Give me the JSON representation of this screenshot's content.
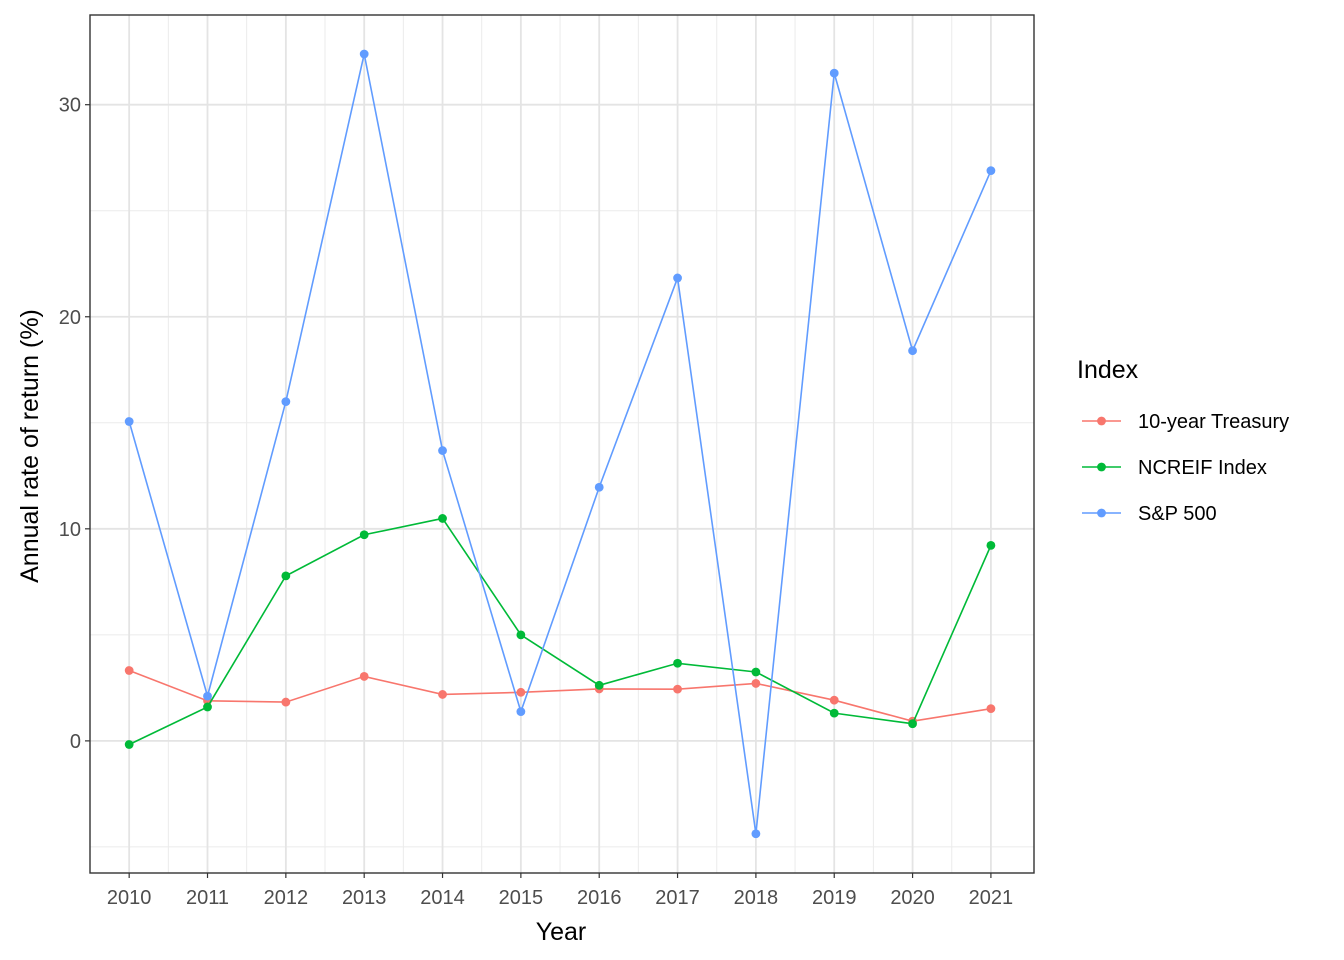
{
  "chart_data": {
    "type": "line",
    "xlabel": "Year",
    "ylabel": "Annual rate of return (%)",
    "x": [
      2010,
      2011,
      2012,
      2013,
      2014,
      2015,
      2016,
      2017,
      2018,
      2019,
      2020,
      2021
    ],
    "x_tick_labels": [
      "2010",
      "2011",
      "2012",
      "2013",
      "2014",
      "2015",
      "2016",
      "2017",
      "2018",
      "2019",
      "2020",
      "2021"
    ],
    "y_ticks": [
      0,
      10,
      20,
      30
    ],
    "y_tick_labels": [
      "0",
      "10",
      "20",
      "30"
    ],
    "xlim": [
      2009.5,
      2021.55
    ],
    "ylim": [
      -6.23,
      34.23
    ],
    "grid": true,
    "legend": {
      "title": "Index",
      "position": "right"
    },
    "series": [
      {
        "name": "10-year Treasury",
        "color": "#F8766D",
        "values": [
          3.32,
          1.89,
          1.83,
          3.04,
          2.19,
          2.29,
          2.45,
          2.44,
          2.71,
          1.92,
          0.93,
          1.52
        ]
      },
      {
        "name": "NCREIF Index",
        "color": "#00BA38",
        "values": [
          -0.17,
          1.6,
          7.78,
          9.72,
          10.49,
          5.0,
          2.62,
          3.66,
          3.25,
          1.31,
          0.81,
          9.22
        ]
      },
      {
        "name": "S&P 500",
        "color": "#619CFF",
        "values": [
          15.06,
          2.11,
          16.0,
          32.39,
          13.69,
          1.38,
          11.96,
          21.83,
          -4.38,
          31.49,
          18.4,
          26.89
        ]
      }
    ]
  }
}
